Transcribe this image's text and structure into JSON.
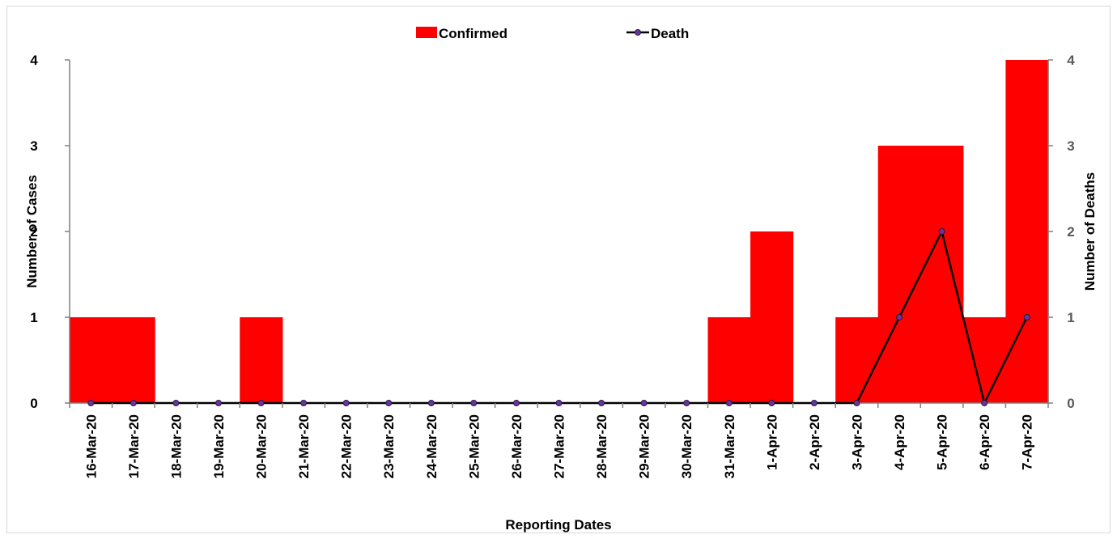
{
  "chart_data": {
    "type": "bar",
    "categories": [
      "16-Mar-20",
      "17-Mar-20",
      "18-Mar-20",
      "19-Mar-20",
      "20-Mar-20",
      "21-Mar-20",
      "22-Mar-20",
      "23-Mar-20",
      "24-Mar-20",
      "25-Mar-20",
      "26-Mar-20",
      "27-Mar-20",
      "28-Mar-20",
      "29-Mar-20",
      "30-Mar-20",
      "31-Mar-20",
      "1-Apr-20",
      "2-Apr-20",
      "3-Apr-20",
      "4-Apr-20",
      "5-Apr-20",
      "6-Apr-20",
      "7-Apr-20"
    ],
    "series": [
      {
        "name": "Confirmed",
        "type": "bar",
        "axis": "left",
        "color": "#ff0000",
        "values": [
          1,
          1,
          0,
          0,
          1,
          0,
          0,
          0,
          0,
          0,
          0,
          0,
          0,
          0,
          0,
          1,
          2,
          0,
          1,
          3,
          3,
          1,
          4
        ]
      },
      {
        "name": "Death",
        "type": "line",
        "axis": "right",
        "color": "#000000",
        "marker_color": "#7030a0",
        "values": [
          0,
          0,
          0,
          0,
          0,
          0,
          0,
          0,
          0,
          0,
          0,
          0,
          0,
          0,
          0,
          0,
          0,
          0,
          0,
          1,
          2,
          0,
          1
        ]
      }
    ],
    "xlabel": "Reporting Dates",
    "ylabel": "Number of Cases",
    "y2label": "Number of Deaths",
    "ylim": [
      0,
      4
    ],
    "y2lim": [
      0,
      4
    ],
    "yticks": [
      "0",
      "1",
      "2",
      "3",
      "4"
    ],
    "y2ticks": [
      "0",
      "1",
      "2",
      "3",
      "4"
    ],
    "legend_position": "top-center",
    "grid": false
  }
}
